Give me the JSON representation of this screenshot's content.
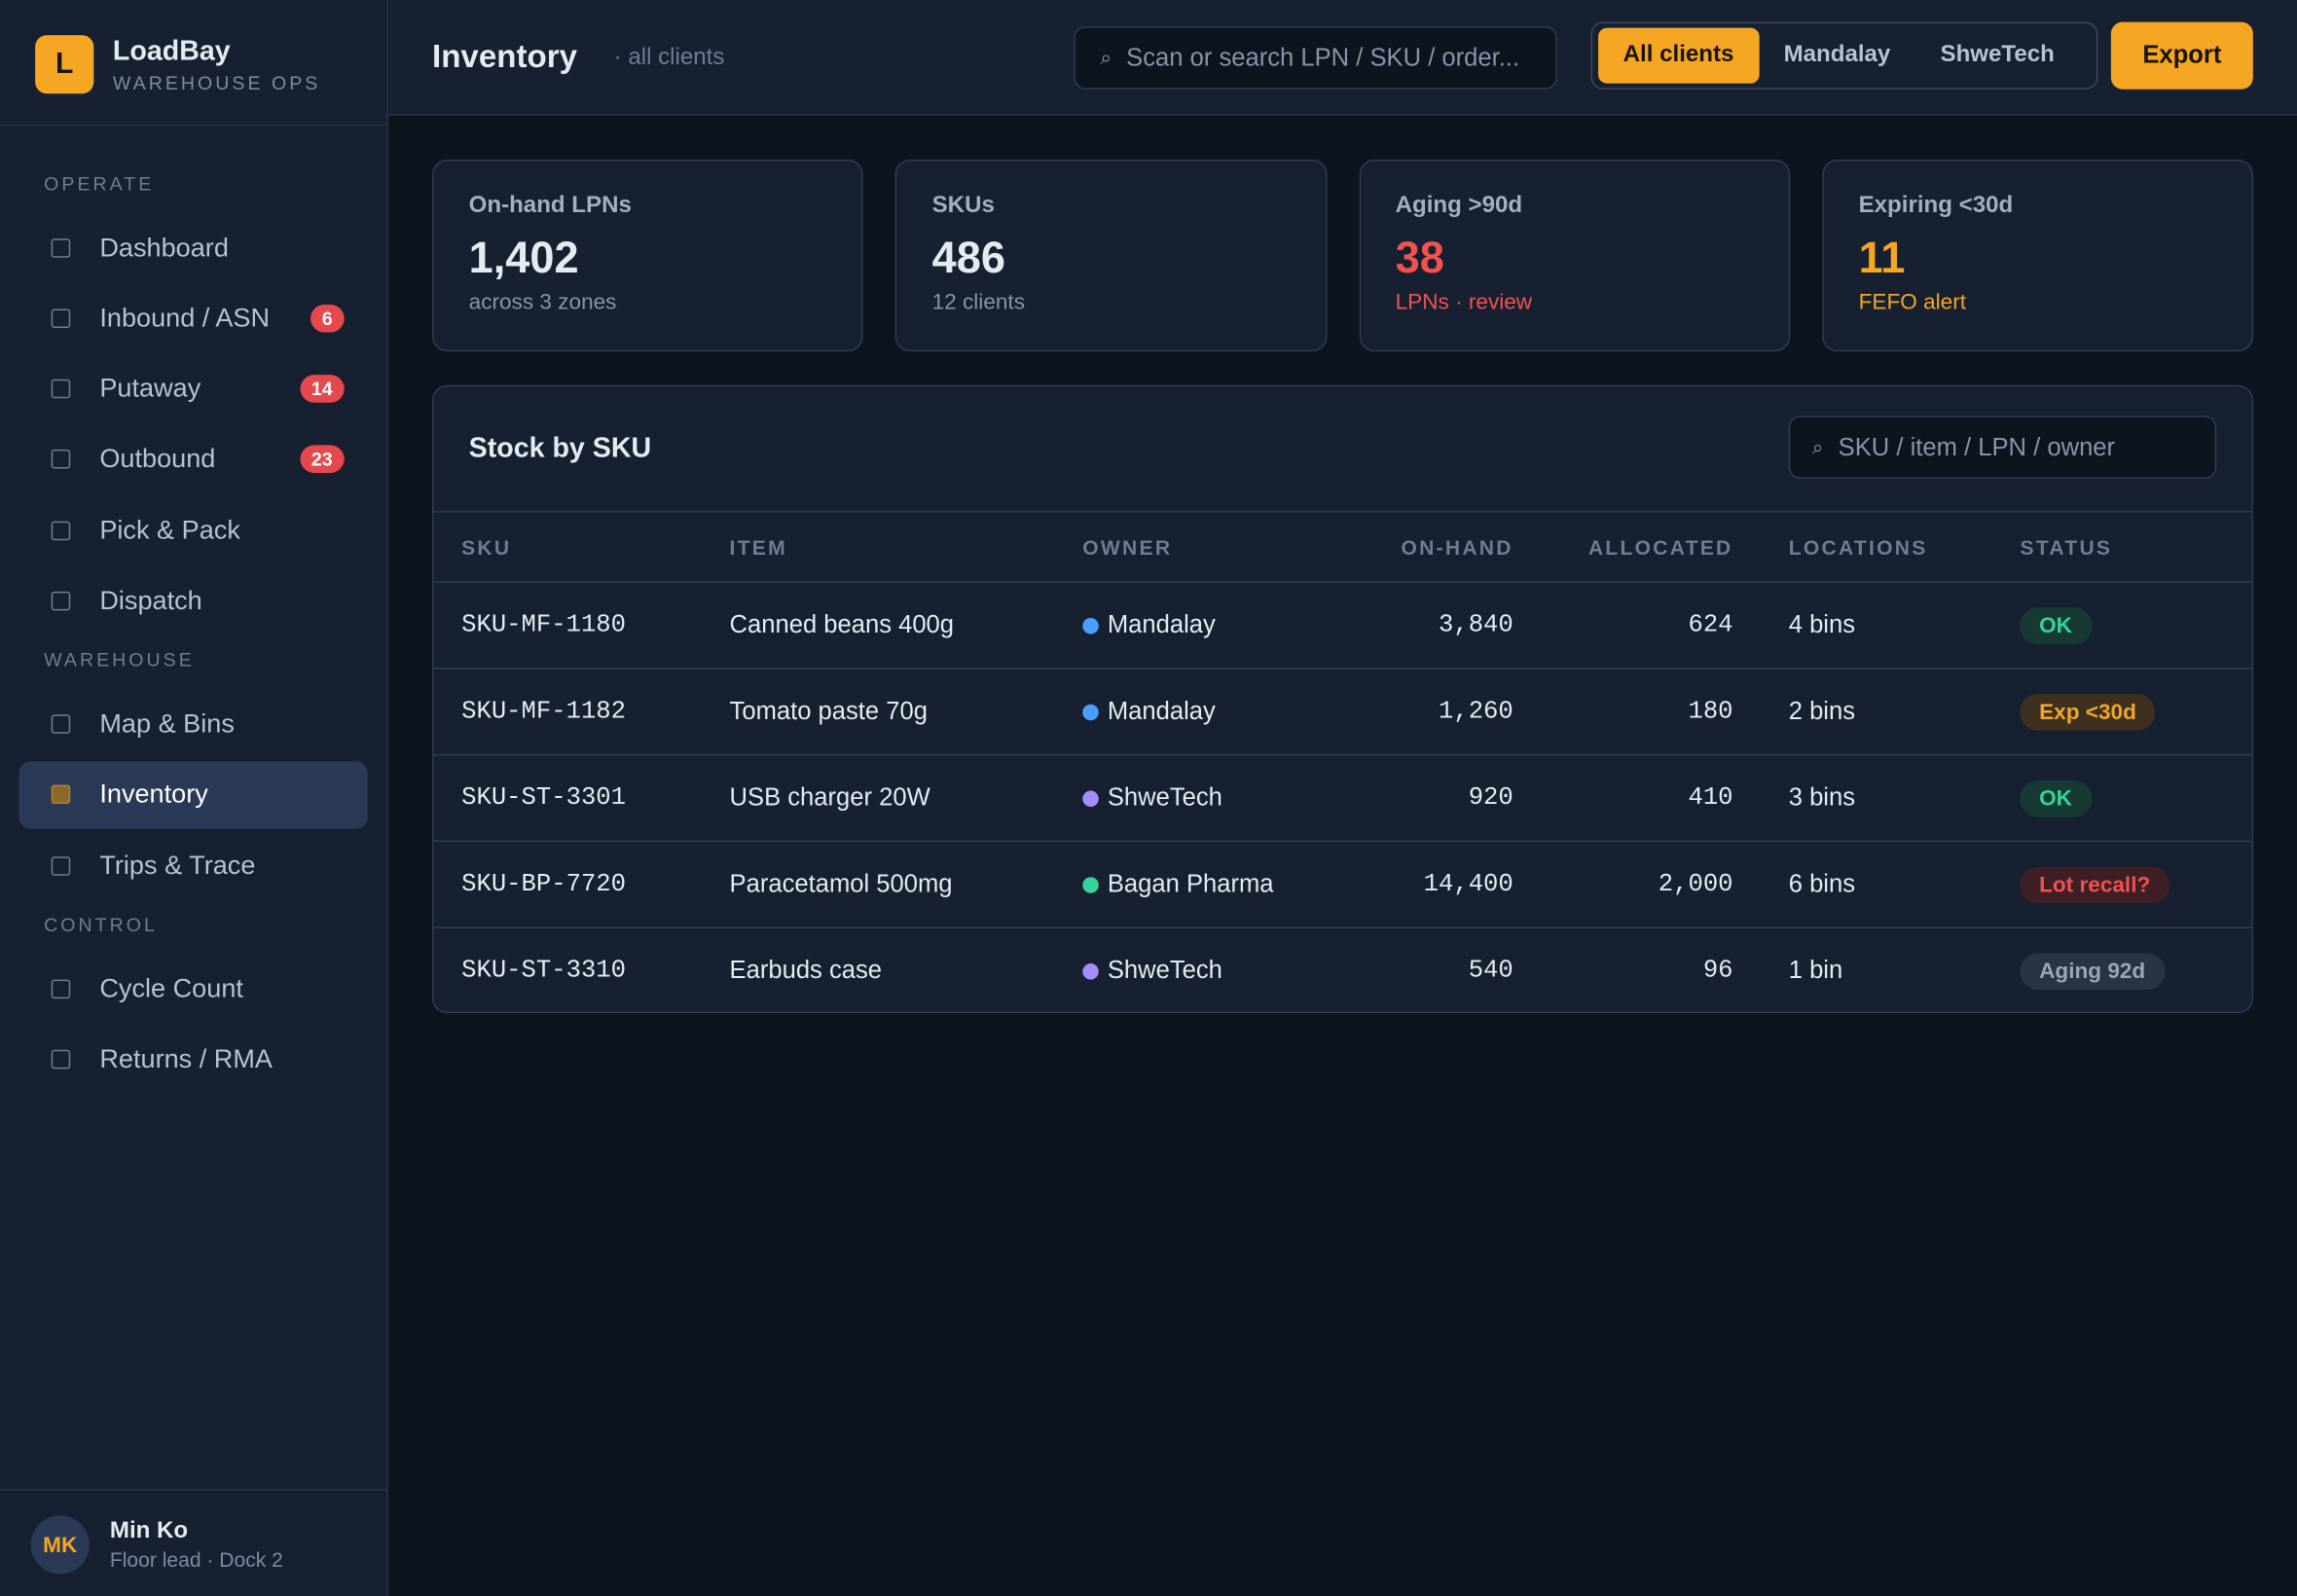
{
  "brand": {
    "logo": "L",
    "name": "LoadBay",
    "tagline": "WAREHOUSE OPS"
  },
  "nav": [
    {
      "section": "OPERATE",
      "items": [
        {
          "label": "Dashboard"
        },
        {
          "label": "Inbound / ASN",
          "badge": "6"
        },
        {
          "label": "Putaway",
          "badge": "14"
        },
        {
          "label": "Outbound",
          "badge": "23"
        },
        {
          "label": "Pick & Pack"
        },
        {
          "label": "Dispatch"
        }
      ]
    },
    {
      "section": "WAREHOUSE",
      "items": [
        {
          "label": "Map & Bins"
        },
        {
          "label": "Inventory",
          "active": true
        },
        {
          "label": "Trips & Trace"
        }
      ]
    },
    {
      "section": "CONTROL",
      "items": [
        {
          "label": "Cycle Count"
        },
        {
          "label": "Returns / RMA"
        }
      ]
    }
  ],
  "user": {
    "initials": "MK",
    "name": "Min Ko",
    "role": "Floor lead · Dock 2"
  },
  "header": {
    "title": "Inventory",
    "subtitle": "· all clients",
    "search": "Scan or search LPN / SKU / order...",
    "filters": [
      "All clients",
      "Mandalay",
      "ShweTech"
    ],
    "active_filter": 0,
    "export": "Export"
  },
  "kpis": [
    {
      "label": "On-hand LPNs",
      "value": "1,402",
      "note": "across 3 zones",
      "tone": "normal"
    },
    {
      "label": "SKUs",
      "value": "486",
      "note": "12 clients",
      "tone": "normal"
    },
    {
      "label": "Aging >90d",
      "value": "38",
      "note": "LPNs · review",
      "tone": "danger"
    },
    {
      "label": "Expiring <30d",
      "value": "11",
      "note": "FEFO alert",
      "tone": "warn"
    }
  ],
  "table": {
    "title": "Stock by SKU",
    "search": "SKU / item / LPN / owner",
    "columns": [
      "SKU",
      "ITEM",
      "OWNER",
      "ON-HAND",
      "ALLOCATED",
      "LOCATIONS",
      "STATUS"
    ],
    "rows": [
      {
        "sku": "SKU-MF-1180",
        "item": "Canned beans 400g",
        "owner": "Mandalay",
        "owner_color": "#4a9eff",
        "on_hand": "3,840",
        "allocated": "624",
        "locations": "4 bins",
        "status": "OK",
        "tone": "ok"
      },
      {
        "sku": "SKU-MF-1182",
        "item": "Tomato paste 70g",
        "owner": "Mandalay",
        "owner_color": "#4a9eff",
        "on_hand": "1,260",
        "allocated": "180",
        "locations": "2 bins",
        "status": "Exp <30d",
        "tone": "warn"
      },
      {
        "sku": "SKU-ST-3301",
        "item": "USB charger 20W",
        "owner": "ShweTech",
        "owner_color": "#a78bfa",
        "on_hand": "920",
        "allocated": "410",
        "locations": "3 bins",
        "status": "OK",
        "tone": "ok"
      },
      {
        "sku": "SKU-BP-7720",
        "item": "Paracetamol 500mg",
        "owner": "Bagan Pharma",
        "owner_color": "#34d399",
        "on_hand": "14,400",
        "allocated": "2,000",
        "locations": "6 bins",
        "status": "Lot recall?",
        "tone": "danger"
      },
      {
        "sku": "SKU-ST-3310",
        "item": "Earbuds case",
        "owner": "ShweTech",
        "owner_color": "#a78bfa",
        "on_hand": "540",
        "allocated": "96",
        "locations": "1 bin",
        "status": "Aging 92d",
        "tone": "muted"
      }
    ]
  }
}
